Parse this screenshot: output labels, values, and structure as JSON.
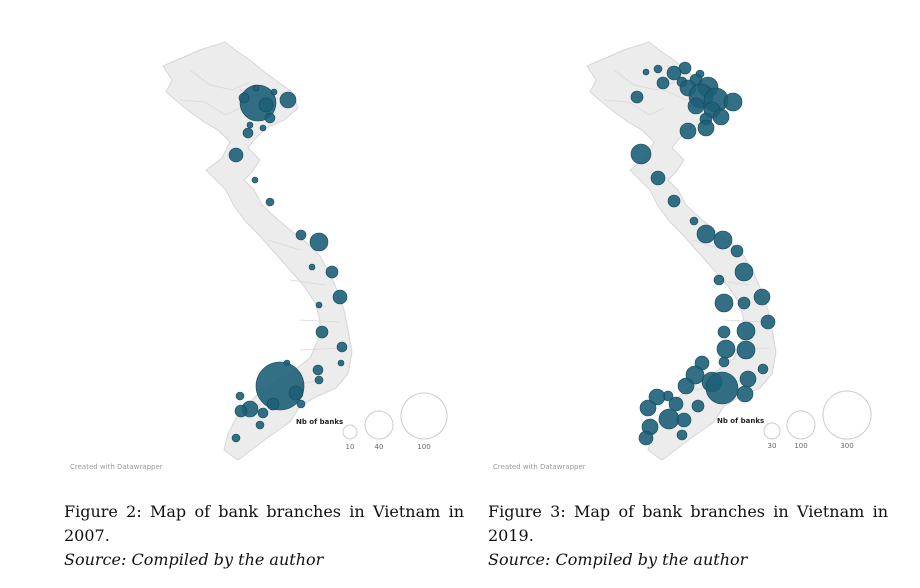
{
  "figures": [
    {
      "id": "left",
      "caption": "Figure 2: Map of bank branches in Vietnam in",
      "caption_cont": "2007.",
      "source": "Source: Compiled by the author",
      "credit": "Created with Datawrapper",
      "legend": {
        "title": "Nb of banks",
        "values": [
          "10",
          "40",
          "100"
        ]
      }
    },
    {
      "id": "right",
      "caption": "Figure 3: Map of bank branches in Vietnam in",
      "caption_cont": "2019.",
      "source": "Source: Compiled by the author",
      "credit": "Created with Datawrapper",
      "legend": {
        "title": "Nb of banks",
        "values": [
          "30",
          "100",
          "300"
        ]
      }
    }
  ],
  "colors": {
    "bubble": "#1d5f78",
    "land": "#ececec",
    "border": "#d2d2d2"
  }
}
